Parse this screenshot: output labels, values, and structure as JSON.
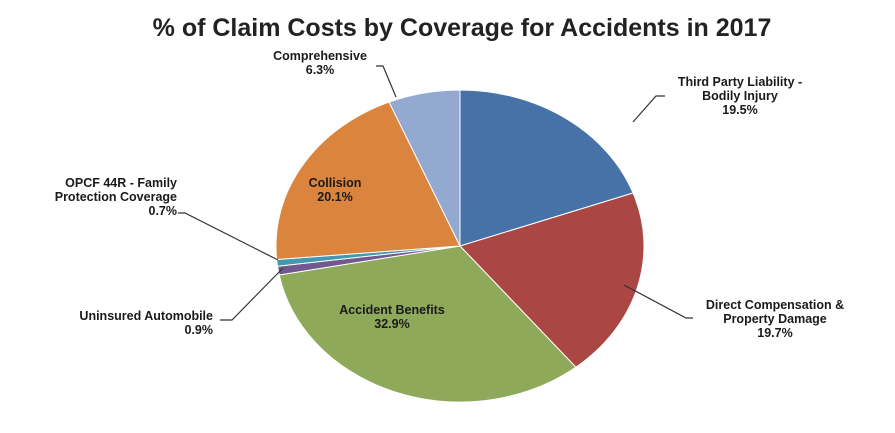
{
  "chart_data": {
    "type": "pie",
    "title": "% of Claim Costs by Coverage for Accidents in 2017",
    "start_angle_deg": 0,
    "direction": "clockwise",
    "legend": "none",
    "slices": [
      {
        "label_lines": [
          "Third Party Liability -",
          "Bodily Injury"
        ],
        "value": 19.5,
        "value_text": "19.5%",
        "color": "#4672A8"
      },
      {
        "label_lines": [
          "Direct Compensation &",
          "Property Damage"
        ],
        "value": 19.7,
        "value_text": "19.7%",
        "color": "#AA4643"
      },
      {
        "label_lines": [
          "Accident Benefits"
        ],
        "value": 32.9,
        "value_text": "32.9%",
        "color": "#8EA95A"
      },
      {
        "label_lines": [
          "Uninsured Automobile"
        ],
        "value": 0.9,
        "value_text": "0.9%",
        "color": "#71588F"
      },
      {
        "label_lines": [
          "OPCF 44R - Family",
          "Protection Coverage"
        ],
        "value": 0.7,
        "value_text": "0.7%",
        "color": "#4198AF"
      },
      {
        "label_lines": [
          "Collision"
        ],
        "value": 20.1,
        "value_text": "20.1%",
        "color": "#DB843D"
      },
      {
        "label_lines": [
          "Comprehensive"
        ],
        "value": 6.3,
        "value_text": "6.3%",
        "color": "#93A9CF"
      }
    ]
  }
}
